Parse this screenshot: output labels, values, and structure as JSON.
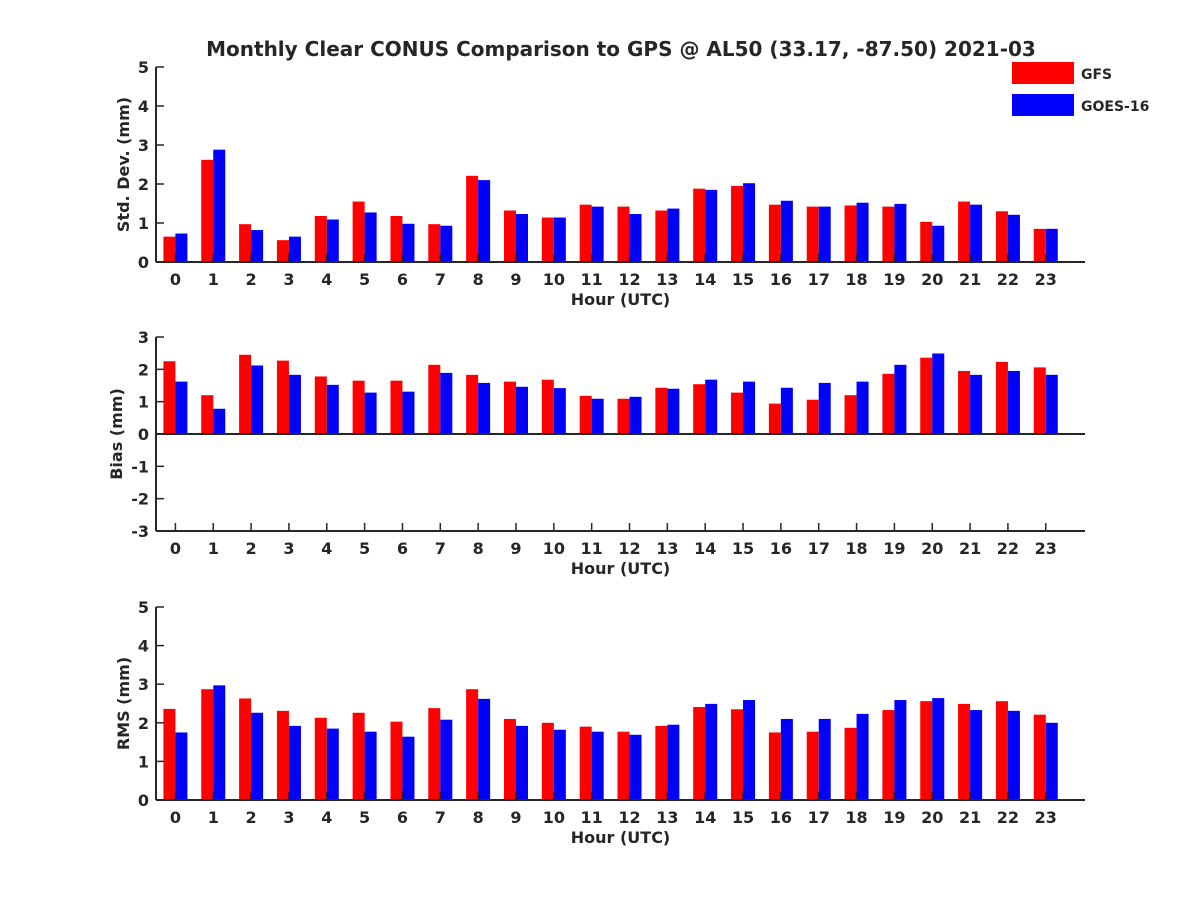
{
  "title": "Monthly Clear CONUS Comparison to GPS @ AL50 (33.17, -87.50) 2021-03",
  "legend": [
    {
      "name": "GFS",
      "color": "#ff0000"
    },
    {
      "name": "GOES-16",
      "color": "#0000ff"
    }
  ],
  "chart_data": [
    {
      "type": "bar",
      "categories": [
        "0",
        "1",
        "2",
        "3",
        "4",
        "5",
        "6",
        "7",
        "8",
        "9",
        "10",
        "11",
        "12",
        "13",
        "14",
        "15",
        "16",
        "17",
        "18",
        "19",
        "20",
        "21",
        "22",
        "23"
      ],
      "xlabel": "Hour (UTC)",
      "ylabel": "Std. Dev. (mm)",
      "ylim": [
        0,
        5
      ],
      "yticks": [
        "0",
        "1",
        "2",
        "3",
        "4",
        "5"
      ],
      "legend_position": "top-right",
      "series": [
        {
          "name": "GFS",
          "color": "#ff0000",
          "values": [
            0.65,
            2.62,
            0.97,
            0.56,
            1.18,
            1.55,
            1.18,
            0.97,
            2.21,
            1.32,
            1.14,
            1.47,
            1.42,
            1.32,
            1.88,
            1.95,
            1.47,
            1.42,
            1.45,
            1.42,
            1.03,
            1.55,
            1.3,
            0.85
          ]
        },
        {
          "name": "GOES-16",
          "color": "#0000ff",
          "values": [
            0.73,
            2.88,
            0.82,
            0.65,
            1.09,
            1.27,
            0.98,
            0.93,
            2.1,
            1.23,
            1.14,
            1.42,
            1.23,
            1.37,
            1.85,
            2.02,
            1.57,
            1.42,
            1.52,
            1.49,
            0.93,
            1.47,
            1.21,
            0.85
          ]
        }
      ]
    },
    {
      "type": "bar",
      "categories": [
        "0",
        "1",
        "2",
        "3",
        "4",
        "5",
        "6",
        "7",
        "8",
        "9",
        "10",
        "11",
        "12",
        "13",
        "14",
        "15",
        "16",
        "17",
        "18",
        "19",
        "20",
        "21",
        "22",
        "23"
      ],
      "xlabel": "Hour (UTC)",
      "ylabel": "Bias (mm)",
      "ylim": [
        -3,
        3
      ],
      "yticks": [
        "-3",
        "-2",
        "-1",
        "0",
        "1",
        "2",
        "3"
      ],
      "series": [
        {
          "name": "GFS",
          "color": "#ff0000",
          "values": [
            2.25,
            1.2,
            2.45,
            2.27,
            1.78,
            1.65,
            1.65,
            2.14,
            1.83,
            1.62,
            1.68,
            1.18,
            1.09,
            1.43,
            1.54,
            1.28,
            0.94,
            1.06,
            1.2,
            1.86,
            2.36,
            1.95,
            2.23,
            2.06
          ]
        },
        {
          "name": "GOES-16",
          "color": "#0000ff",
          "values": [
            1.62,
            0.78,
            2.12,
            1.83,
            1.52,
            1.28,
            1.31,
            1.89,
            1.58,
            1.46,
            1.42,
            1.09,
            1.15,
            1.4,
            1.68,
            1.62,
            1.43,
            1.58,
            1.62,
            2.14,
            2.49,
            1.83,
            1.95,
            1.83
          ]
        }
      ]
    },
    {
      "type": "bar",
      "categories": [
        "0",
        "1",
        "2",
        "3",
        "4",
        "5",
        "6",
        "7",
        "8",
        "9",
        "10",
        "11",
        "12",
        "13",
        "14",
        "15",
        "16",
        "17",
        "18",
        "19",
        "20",
        "21",
        "22",
        "23"
      ],
      "xlabel": "Hour (UTC)",
      "ylabel": "RMS (mm)",
      "ylim": [
        0,
        5
      ],
      "yticks": [
        "0",
        "1",
        "2",
        "3",
        "4",
        "5"
      ],
      "series": [
        {
          "name": "GFS",
          "color": "#ff0000",
          "values": [
            2.36,
            2.87,
            2.63,
            2.31,
            2.13,
            2.26,
            2.03,
            2.38,
            2.87,
            2.1,
            2.0,
            1.9,
            1.77,
            1.92,
            2.41,
            2.35,
            1.75,
            1.77,
            1.87,
            2.33,
            2.56,
            2.49,
            2.56,
            2.21
          ]
        },
        {
          "name": "GOES-16",
          "color": "#0000ff",
          "values": [
            1.75,
            2.97,
            2.26,
            1.92,
            1.85,
            1.77,
            1.64,
            2.08,
            2.62,
            1.92,
            1.82,
            1.77,
            1.69,
            1.95,
            2.49,
            2.59,
            2.1,
            2.1,
            2.23,
            2.59,
            2.64,
            2.33,
            2.31,
            2.0
          ]
        }
      ]
    }
  ]
}
